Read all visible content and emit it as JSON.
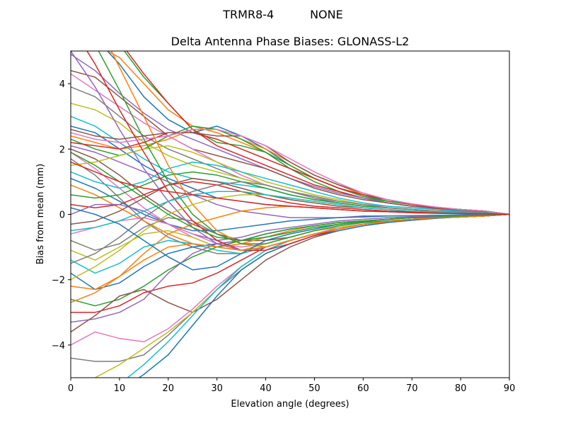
{
  "suptitle": "TRMR8-4          NONE",
  "chart_data": {
    "type": "line",
    "title": "Delta Antenna Phase Biases: GLONASS-L2",
    "xlabel": "Elevation angle (degrees)",
    "ylabel": "Bias from mean (mm)",
    "xlim": [
      0,
      90
    ],
    "ylim": [
      -5,
      5
    ],
    "xticks": [
      0,
      10,
      20,
      30,
      40,
      50,
      60,
      70,
      80,
      90
    ],
    "yticks": [
      -4,
      -2,
      0,
      2,
      4
    ],
    "xtick_labels": [
      "0",
      "10",
      "20",
      "30",
      "40",
      "50",
      "60",
      "70",
      "80",
      "90"
    ],
    "ytick_labels": [
      "−4",
      "−2",
      "0",
      "2",
      "4"
    ],
    "grid": false,
    "legend": "none",
    "x": [
      0,
      5,
      10,
      15,
      20,
      25,
      30,
      35,
      40,
      45,
      50,
      55,
      60,
      65,
      70,
      75,
      80,
      85,
      90
    ],
    "colors": [
      "#1f77b4",
      "#ff7f0e",
      "#2ca02c",
      "#d62728",
      "#9467bd",
      "#8c564b",
      "#e377c2",
      "#7f7f7f",
      "#bcbd22",
      "#17becf"
    ],
    "series": [
      {
        "values": [
          6.0,
          5.4,
          4.6,
          3.6,
          2.9,
          2.5,
          2.7,
          2.4,
          2.0,
          1.5,
          1.1,
          0.8,
          0.6,
          0.4,
          0.3,
          0.2,
          0.15,
          0.1,
          0.0
        ]
      },
      {
        "values": [
          5.6,
          5.2,
          4.8,
          4.0,
          3.2,
          2.7,
          2.5,
          2.2,
          1.9,
          1.5,
          1.1,
          0.8,
          0.55,
          0.4,
          0.3,
          0.2,
          0.15,
          0.1,
          0.0
        ]
      },
      {
        "values": [
          5.2,
          5.4,
          5.2,
          4.2,
          3.4,
          2.6,
          2.2,
          2.1,
          1.9,
          1.4,
          1.0,
          0.7,
          0.5,
          0.4,
          0.3,
          0.2,
          0.15,
          0.1,
          0.0
        ]
      },
      {
        "values": [
          5.3,
          5.6,
          5.3,
          4.3,
          3.4,
          2.6,
          2.1,
          1.8,
          1.5,
          1.2,
          0.9,
          0.7,
          0.5,
          0.35,
          0.25,
          0.2,
          0.15,
          0.1,
          0.0
        ]
      },
      {
        "values": [
          4.9,
          4.4,
          3.7,
          3.1,
          2.6,
          2.3,
          2.0,
          1.7,
          1.4,
          1.1,
          0.85,
          0.65,
          0.5,
          0.35,
          0.25,
          0.2,
          0.15,
          0.1,
          0.0
        ]
      },
      {
        "values": [
          4.4,
          4.2,
          3.6,
          3.0,
          2.4,
          2.0,
          1.8,
          1.6,
          1.4,
          1.1,
          0.8,
          0.6,
          0.45,
          0.35,
          0.25,
          0.18,
          0.12,
          0.08,
          0.0
        ]
      },
      {
        "values": [
          4.3,
          3.8,
          3.3,
          2.8,
          2.4,
          2.0,
          1.6,
          1.2,
          0.9,
          0.7,
          0.5,
          0.4,
          0.3,
          0.25,
          0.2,
          0.15,
          0.1,
          0.05,
          0.0
        ]
      },
      {
        "values": [
          3.9,
          3.6,
          3.0,
          2.4,
          2.0,
          1.7,
          1.4,
          1.1,
          0.9,
          0.7,
          0.5,
          0.35,
          0.25,
          0.2,
          0.15,
          0.1,
          0.08,
          0.05,
          0.0
        ]
      },
      {
        "values": [
          3.4,
          3.2,
          2.8,
          2.2,
          1.8,
          1.5,
          1.3,
          1.1,
          0.9,
          0.7,
          0.55,
          0.4,
          0.3,
          0.2,
          0.15,
          0.1,
          0.08,
          0.05,
          0.0
        ]
      },
      {
        "values": [
          3.0,
          2.7,
          2.2,
          1.7,
          1.3,
          1.1,
          1.0,
          0.9,
          0.8,
          0.6,
          0.45,
          0.35,
          0.25,
          0.2,
          0.15,
          0.1,
          0.08,
          0.05,
          0.0
        ]
      },
      {
        "values": [
          2.7,
          2.5,
          2.0,
          1.5,
          1.1,
          0.8,
          0.5,
          0.4,
          0.3,
          0.25,
          0.2,
          0.15,
          0.1,
          0.08,
          0.05,
          0.03,
          0.02,
          0.01,
          0.0
        ]
      },
      {
        "values": [
          2.4,
          2.2,
          2.0,
          2.1,
          2.3,
          2.6,
          2.6,
          2.3,
          2.0,
          1.6,
          1.2,
          0.9,
          0.6,
          0.45,
          0.3,
          0.22,
          0.15,
          0.1,
          0.0
        ]
      },
      {
        "values": [
          2.3,
          2.0,
          1.8,
          2.0,
          2.4,
          2.7,
          2.6,
          2.3,
          1.9,
          1.5,
          1.1,
          0.8,
          0.55,
          0.4,
          0.3,
          0.2,
          0.15,
          0.1,
          0.0
        ]
      },
      {
        "values": [
          2.2,
          2.1,
          2.0,
          2.2,
          2.5,
          2.5,
          2.3,
          2.0,
          1.7,
          1.4,
          1.1,
          0.8,
          0.6,
          0.45,
          0.3,
          0.2,
          0.15,
          0.1,
          0.0
        ]
      },
      {
        "values": [
          2.1,
          1.9,
          1.6,
          1.3,
          1.0,
          0.6,
          0.3,
          0.1,
          0.0,
          -0.1,
          -0.1,
          -0.1,
          -0.05,
          -0.05,
          -0.05,
          -0.03,
          -0.02,
          -0.01,
          0.0
        ]
      },
      {
        "values": [
          2.0,
          1.7,
          1.2,
          0.6,
          0.1,
          -0.3,
          -0.6,
          -0.8,
          -0.8,
          -0.7,
          -0.5,
          -0.4,
          -0.3,
          -0.2,
          -0.15,
          -0.1,
          -0.08,
          -0.05,
          0.0
        ]
      },
      {
        "values": [
          1.9,
          1.4,
          0.8,
          0.2,
          -0.3,
          -0.7,
          -1.0,
          -1.1,
          -1.0,
          -0.8,
          -0.6,
          -0.4,
          -0.3,
          -0.2,
          -0.15,
          -0.1,
          -0.08,
          -0.05,
          0.0
        ]
      },
      {
        "values": [
          1.7,
          1.2,
          0.5,
          -0.2,
          -0.7,
          -1.0,
          -1.2,
          -1.2,
          -1.0,
          -0.8,
          -0.6,
          -0.45,
          -0.3,
          -0.2,
          -0.15,
          -0.1,
          -0.08,
          -0.05,
          0.0
        ]
      },
      {
        "values": [
          1.5,
          1.6,
          1.8,
          2.0,
          2.1,
          1.9,
          1.6,
          1.3,
          1.0,
          0.8,
          0.6,
          0.45,
          0.3,
          0.2,
          0.15,
          0.1,
          0.08,
          0.05,
          0.0
        ]
      },
      {
        "values": [
          1.3,
          1.0,
          0.8,
          1.0,
          1.4,
          1.6,
          1.5,
          1.3,
          1.1,
          0.9,
          0.7,
          0.5,
          0.35,
          0.25,
          0.2,
          0.15,
          0.1,
          0.05,
          0.0
        ]
      },
      {
        "values": [
          1.1,
          0.8,
          0.4,
          0.0,
          -0.3,
          -0.5,
          -0.5,
          -0.4,
          -0.3,
          -0.2,
          -0.15,
          -0.1,
          -0.08,
          -0.05,
          -0.04,
          -0.03,
          -0.02,
          -0.01,
          0.0
        ]
      },
      {
        "values": [
          0.9,
          0.6,
          0.2,
          -0.2,
          -0.6,
          -0.9,
          -1.0,
          -0.9,
          -0.7,
          -0.5,
          -0.35,
          -0.25,
          -0.2,
          -0.15,
          -0.1,
          -0.08,
          -0.05,
          -0.03,
          0.0
        ]
      },
      {
        "values": [
          0.6,
          0.5,
          0.6,
          0.9,
          1.2,
          1.3,
          1.2,
          1.0,
          0.8,
          0.6,
          0.45,
          0.35,
          0.25,
          0.2,
          0.15,
          0.1,
          0.08,
          0.05,
          0.0
        ]
      },
      {
        "values": [
          0.3,
          0.2,
          0.3,
          0.6,
          0.9,
          1.0,
          0.9,
          0.7,
          0.5,
          0.35,
          0.25,
          0.2,
          0.15,
          0.1,
          0.08,
          0.05,
          0.04,
          0.02,
          0.0
        ]
      },
      {
        "values": [
          0.0,
          0.3,
          0.3,
          0.1,
          -0.3,
          -0.6,
          -0.8,
          -0.7,
          -0.5,
          -0.4,
          -0.3,
          -0.2,
          -0.15,
          -0.1,
          -0.08,
          -0.05,
          -0.03,
          -0.02,
          0.0
        ]
      },
      {
        "values": [
          -0.3,
          -0.2,
          0.1,
          0.5,
          0.9,
          1.1,
          1.0,
          0.8,
          0.6,
          0.45,
          0.35,
          0.25,
          0.2,
          0.15,
          0.1,
          0.08,
          0.05,
          0.03,
          0.0
        ]
      },
      {
        "values": [
          -0.6,
          -0.4,
          -0.2,
          -0.1,
          -0.3,
          -0.6,
          -0.9,
          -1.0,
          -0.9,
          -0.7,
          -0.5,
          -0.35,
          -0.25,
          -0.2,
          -0.15,
          -0.1,
          -0.08,
          -0.05,
          0.0
        ]
      },
      {
        "values": [
          -0.8,
          -1.1,
          -0.9,
          -0.4,
          -0.1,
          -0.2,
          -0.6,
          -0.9,
          -1.0,
          -0.8,
          -0.6,
          -0.45,
          -0.3,
          -0.22,
          -0.15,
          -0.1,
          -0.08,
          -0.05,
          0.0
        ]
      },
      {
        "values": [
          -1.1,
          -1.4,
          -1.0,
          -0.6,
          -0.5,
          -0.7,
          -1.0,
          -1.1,
          -0.9,
          -0.7,
          -0.5,
          -0.4,
          -0.3,
          -0.2,
          -0.15,
          -0.1,
          -0.08,
          -0.05,
          0.0
        ]
      },
      {
        "values": [
          -1.4,
          -1.8,
          -1.5,
          -1.0,
          -0.8,
          -0.9,
          -1.1,
          -1.2,
          -1.0,
          -0.8,
          -0.6,
          -0.45,
          -0.3,
          -0.22,
          -0.15,
          -0.1,
          -0.08,
          -0.05,
          0.0
        ]
      },
      {
        "values": [
          -1.8,
          -2.3,
          -2.1,
          -1.6,
          -1.2,
          -1.0,
          -0.9,
          -0.8,
          -0.6,
          -0.45,
          -0.35,
          -0.25,
          -0.2,
          -0.15,
          -0.1,
          -0.08,
          -0.05,
          -0.03,
          0.0
        ]
      },
      {
        "values": [
          -2.2,
          -2.3,
          -1.9,
          -1.2,
          -0.6,
          -0.3,
          -0.1,
          0.1,
          0.2,
          0.25,
          0.2,
          0.15,
          0.1,
          0.08,
          0.05,
          0.04,
          0.03,
          0.02,
          0.0
        ]
      },
      {
        "values": [
          -2.6,
          -2.8,
          -2.6,
          -2.2,
          -1.7,
          -1.3,
          -1.0,
          -0.8,
          -0.6,
          -0.45,
          -0.35,
          -0.25,
          -0.2,
          -0.15,
          -0.1,
          -0.08,
          -0.05,
          -0.03,
          0.0
        ]
      },
      {
        "values": [
          -3.0,
          -3.0,
          -2.8,
          -2.4,
          -2.2,
          -2.1,
          -1.8,
          -1.4,
          -1.0,
          -0.8,
          -0.6,
          -0.45,
          -0.3,
          -0.22,
          -0.15,
          -0.1,
          -0.08,
          -0.05,
          0.0
        ]
      },
      {
        "values": [
          -3.3,
          -3.2,
          -3.0,
          -2.6,
          -1.8,
          -1.2,
          -0.9,
          -0.8,
          -0.7,
          -0.55,
          -0.4,
          -0.3,
          -0.22,
          -0.15,
          -0.1,
          -0.08,
          -0.05,
          -0.03,
          0.0
        ]
      },
      {
        "values": [
          -3.6,
          -3.1,
          -2.5,
          -2.3,
          -2.7,
          -3.0,
          -2.6,
          -2.0,
          -1.4,
          -1.0,
          -0.7,
          -0.5,
          -0.35,
          -0.25,
          -0.18,
          -0.12,
          -0.08,
          -0.05,
          0.0
        ]
      },
      {
        "values": [
          -4.0,
          -3.6,
          -3.8,
          -3.9,
          -3.5,
          -2.9,
          -2.2,
          -1.6,
          -1.1,
          -0.8,
          -0.6,
          -0.45,
          -0.3,
          -0.22,
          -0.15,
          -0.1,
          -0.08,
          -0.05,
          0.0
        ]
      },
      {
        "values": [
          -4.4,
          -4.5,
          -4.5,
          -4.3,
          -3.7,
          -3.0,
          -2.3,
          -1.7,
          -1.2,
          -0.9,
          -0.65,
          -0.45,
          -0.3,
          -0.22,
          -0.15,
          -0.1,
          -0.08,
          -0.05,
          0.0
        ]
      },
      {
        "values": [
          -5.2,
          -5.0,
          -4.6,
          -4.1,
          -3.6,
          -3.0,
          -2.3,
          -1.6,
          -1.1,
          -0.8,
          -0.6,
          -0.45,
          -0.3,
          -0.22,
          -0.15,
          -0.1,
          -0.08,
          -0.05,
          0.0
        ]
      },
      {
        "values": [
          -6.0,
          -5.6,
          -5.2,
          -4.6,
          -3.9,
          -3.1,
          -2.3,
          -1.6,
          -1.1,
          -0.8,
          -0.6,
          -0.45,
          -0.3,
          -0.22,
          -0.15,
          -0.1,
          -0.08,
          -0.05,
          0.0
        ]
      },
      {
        "values": [
          -6.4,
          -5.8,
          -5.4,
          -4.9,
          -4.3,
          -3.4,
          -2.5,
          -1.7,
          -1.2,
          -0.9,
          -0.65,
          -0.5,
          -0.35,
          -0.25,
          -0.18,
          -0.12,
          -0.08,
          -0.05,
          0.0
        ]
      },
      {
        "values": [
          7.0,
          6.0,
          4.5,
          3.0,
          1.5,
          0.3,
          -0.5,
          -0.9,
          -1.0,
          -0.8,
          -0.6,
          -0.45,
          -0.3,
          -0.22,
          -0.15,
          -0.1,
          -0.08,
          -0.05,
          0.0
        ]
      },
      {
        "values": [
          6.5,
          5.2,
          3.8,
          2.3,
          1.0,
          0.0,
          -0.6,
          -0.9,
          -0.9,
          -0.7,
          -0.5,
          -0.35,
          -0.25,
          -0.2,
          -0.15,
          -0.1,
          -0.08,
          -0.05,
          0.0
        ]
      },
      {
        "values": [
          5.8,
          4.6,
          3.2,
          1.9,
          0.7,
          -0.2,
          -0.8,
          -1.1,
          -1.1,
          -0.9,
          -0.65,
          -0.45,
          -0.3,
          -0.22,
          -0.15,
          -0.1,
          -0.08,
          -0.05,
          0.0
        ]
      },
      {
        "values": [
          5.0,
          3.9,
          2.6,
          1.4,
          0.4,
          -0.4,
          -0.9,
          -1.1,
          -1.0,
          -0.8,
          -0.6,
          -0.45,
          -0.3,
          -0.22,
          -0.15,
          -0.1,
          -0.08,
          -0.05,
          0.0
        ]
      },
      {
        "values": [
          2.6,
          2.4,
          2.3,
          2.4,
          2.5,
          2.5,
          2.4,
          2.4,
          2.1,
          1.6,
          1.2,
          0.9,
          0.65,
          0.45,
          0.32,
          0.22,
          0.15,
          0.1,
          0.0
        ]
      },
      {
        "values": [
          2.5,
          2.3,
          2.2,
          2.3,
          2.4,
          2.6,
          2.6,
          2.4,
          2.1,
          1.7,
          1.3,
          0.95,
          0.65,
          0.45,
          0.32,
          0.22,
          0.15,
          0.1,
          0.0
        ]
      },
      {
        "values": [
          -1.5,
          -1.2,
          -0.7,
          -0.1,
          0.4,
          0.7,
          0.9,
          1.0,
          0.9,
          0.7,
          0.55,
          0.4,
          0.3,
          0.2,
          0.15,
          0.1,
          0.08,
          0.05,
          0.0
        ]
      },
      {
        "values": [
          -2.0,
          -1.6,
          -1.1,
          -0.5,
          0.0,
          0.3,
          0.5,
          0.6,
          0.6,
          0.5,
          0.4,
          0.3,
          0.2,
          0.15,
          0.1,
          0.08,
          0.05,
          0.03,
          0.0
        ]
      },
      {
        "values": [
          -0.5,
          -0.4,
          -0.2,
          0.1,
          0.4,
          0.6,
          0.7,
          0.7,
          0.6,
          0.5,
          0.4,
          0.3,
          0.2,
          0.15,
          0.1,
          0.08,
          0.05,
          0.03,
          0.0
        ]
      },
      {
        "values": [
          0.2,
          0.0,
          -0.3,
          -0.8,
          -1.3,
          -1.7,
          -1.6,
          -1.2,
          -0.8,
          -0.6,
          -0.45,
          -0.3,
          -0.22,
          -0.15,
          -0.1,
          -0.08,
          -0.05,
          -0.03,
          0.0
        ]
      },
      {
        "values": [
          -2.7,
          -2.4,
          -1.9,
          -1.4,
          -1.0,
          -0.9,
          -1.0,
          -1.1,
          -1.0,
          -0.8,
          -0.6,
          -0.45,
          -0.3,
          -0.22,
          -0.15,
          -0.1,
          -0.08,
          -0.05,
          0.0
        ]
      },
      {
        "values": [
          1.9,
          1.5,
          1.0,
          0.5,
          0.0,
          -0.4,
          -0.7,
          -0.8,
          -0.7,
          -0.55,
          -0.4,
          -0.3,
          -0.22,
          -0.15,
          -0.1,
          -0.08,
          -0.05,
          -0.03,
          0.0
        ]
      },
      {
        "values": [
          1.6,
          1.3,
          1.0,
          0.8,
          0.7,
          0.6,
          0.5,
          0.4,
          0.3,
          0.25,
          0.2,
          0.15,
          0.1,
          0.08,
          0.05,
          0.04,
          0.03,
          0.02,
          0.0
        ]
      }
    ]
  }
}
